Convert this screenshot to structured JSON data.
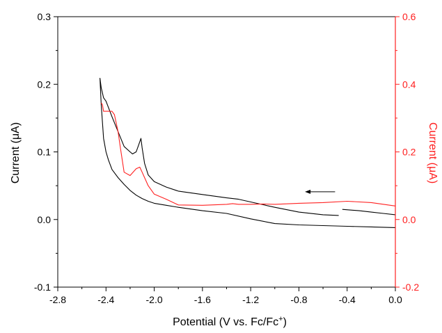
{
  "chart_data": {
    "type": "line",
    "title": "",
    "xlabel": "Potential (V vs. Fc/Fc",
    "xlabel_sup": "+",
    "xlabel_end": ")",
    "ylabel_left": "Current (μA)",
    "ylabel_right": "Current (μA)",
    "xlim": [
      -2.8,
      0.0
    ],
    "ylim_left": [
      -0.1,
      0.3
    ],
    "ylim_right": [
      -0.2,
      0.6
    ],
    "x_ticks": [
      "-2.8",
      "-2.4",
      "-2.0",
      "-1.6",
      "-1.2",
      "-0.8",
      "-0.4",
      "0.0"
    ],
    "y_left_ticks": [
      "-0.1",
      "0.0",
      "0.1",
      "0.2",
      "0.3"
    ],
    "y_right_ticks": [
      "-0.2",
      "0.0",
      "0.2",
      "0.4",
      "0.6"
    ],
    "colors": {
      "left": "#000000",
      "right": "#ff2020"
    },
    "arrow": {
      "direction": "left",
      "x_start": -0.5,
      "x_end": -0.75,
      "y_left": 0.041
    },
    "series": [
      {
        "axis": "left",
        "color": "#000000",
        "segments": [
          [
            [
              0.0,
              0.007
            ],
            [
              -0.1,
              0.009
            ],
            [
              -0.2,
              0.011
            ],
            [
              -0.3,
              0.013
            ],
            [
              -0.44,
              0.015
            ]
          ],
          [
            [
              -0.47,
              0.006
            ],
            [
              -0.6,
              0.007
            ],
            [
              -0.8,
              0.011
            ],
            [
              -1.0,
              0.018
            ],
            [
              -1.2,
              0.026
            ],
            [
              -1.3,
              0.03
            ],
            [
              -1.4,
              0.032
            ],
            [
              -1.6,
              0.037
            ],
            [
              -1.8,
              0.042
            ],
            [
              -1.9,
              0.048
            ],
            [
              -2.0,
              0.056
            ],
            [
              -2.05,
              0.066
            ],
            [
              -2.08,
              0.083
            ],
            [
              -2.1,
              0.106
            ],
            [
              -2.11,
              0.12
            ],
            [
              -2.13,
              0.11
            ],
            [
              -2.15,
              0.1
            ],
            [
              -2.18,
              0.097
            ],
            [
              -2.2,
              0.1
            ],
            [
              -2.25,
              0.108
            ],
            [
              -2.3,
              0.13
            ],
            [
              -2.35,
              0.152
            ],
            [
              -2.4,
              0.175
            ],
            [
              -2.42,
              0.18
            ],
            [
              -2.44,
              0.195
            ],
            [
              -2.45,
              0.209
            ],
            [
              -2.44,
              0.17
            ],
            [
              -2.42,
              0.12
            ],
            [
              -2.4,
              0.1
            ],
            [
              -2.38,
              0.088
            ],
            [
              -2.35,
              0.074
            ],
            [
              -2.3,
              0.062
            ],
            [
              -2.25,
              0.052
            ],
            [
              -2.2,
              0.043
            ],
            [
              -2.15,
              0.036
            ],
            [
              -2.1,
              0.031
            ],
            [
              -2.05,
              0.027
            ],
            [
              -2.0,
              0.024
            ],
            [
              -1.9,
              0.021
            ],
            [
              -1.8,
              0.018
            ],
            [
              -1.6,
              0.013
            ],
            [
              -1.4,
              0.009
            ],
            [
              -1.2,
              0.001
            ],
            [
              -1.0,
              -0.006
            ],
            [
              -0.8,
              -0.008
            ],
            [
              -0.6,
              -0.009
            ],
            [
              -0.4,
              -0.01
            ],
            [
              -0.2,
              -0.011
            ],
            [
              0.0,
              -0.012
            ]
          ]
        ]
      },
      {
        "axis": "right",
        "color": "#ff2020",
        "segments": [
          [
            [
              0.0,
              0.04
            ],
            [
              -0.2,
              0.05
            ],
            [
              -0.4,
              0.054
            ],
            [
              -0.6,
              0.05
            ],
            [
              -0.8,
              0.048
            ],
            [
              -1.0,
              0.045
            ],
            [
              -1.1,
              0.046
            ],
            [
              -1.2,
              0.045
            ],
            [
              -1.3,
              0.045
            ],
            [
              -1.35,
              0.047
            ],
            [
              -1.4,
              0.045
            ],
            [
              -1.6,
              0.042
            ],
            [
              -1.8,
              0.043
            ],
            [
              -1.9,
              0.06
            ],
            [
              -2.0,
              0.075
            ],
            [
              -2.05,
              0.1
            ],
            [
              -2.1,
              0.14
            ],
            [
              -2.12,
              0.155
            ],
            [
              -2.15,
              0.15
            ],
            [
              -2.2,
              0.13
            ],
            [
              -2.25,
              0.14
            ],
            [
              -2.28,
              0.21
            ],
            [
              -2.3,
              0.26
            ],
            [
              -2.33,
              0.31
            ],
            [
              -2.35,
              0.32
            ],
            [
              -2.4,
              0.32
            ],
            [
              -2.42,
              0.32
            ],
            [
              -2.43,
              0.34
            ],
            [
              -2.44,
              0.345
            ]
          ]
        ]
      }
    ]
  }
}
